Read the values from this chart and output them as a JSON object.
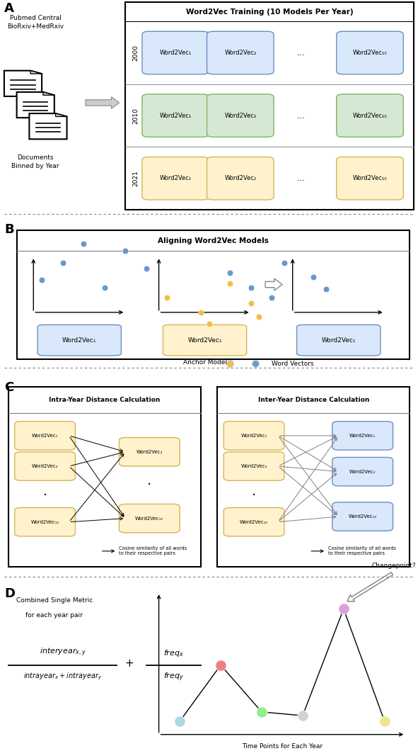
{
  "fig_width": 5.91,
  "fig_height": 10.6,
  "bg_color": "#ffffff",
  "panel_A": {
    "label": "A",
    "title": "Word2Vec Training (10 Models Per Year)",
    "years": [
      "2000",
      "2010",
      "2021"
    ],
    "row_colors": [
      "#dae8fc",
      "#d5e8d4",
      "#fff2cc"
    ],
    "row_edge_colors": [
      "#6c8ebf",
      "#82b366",
      "#d6b656"
    ],
    "src_label1": "Pubmed Central",
    "src_label2": "BioRxiv+MedRxiv",
    "bin_label1": "Documents",
    "bin_label2": "Binned by Year"
  },
  "panel_B": {
    "label": "B",
    "title": "Aligning Word2Vec Models",
    "box_labels": [
      "Word2Vec₁",
      "Word2Vec₁",
      "Word2Vec₁"
    ],
    "box_colors": [
      "#dae8fc",
      "#fff2cc",
      "#dae8fc"
    ],
    "box_edge_colors": [
      "#6c8ebf",
      "#d6b656",
      "#6c8ebf"
    ],
    "anchor_label": "Anchor Model",
    "legend_label": "Word Vectors",
    "yellow_dot": "#f0c040",
    "blue_dot": "#6699cc"
  },
  "panel_C": {
    "label": "C",
    "left_title": "Intra-Year Distance Calculation",
    "right_title": "Inter-Year Distance Calculation",
    "cosine_label": "Cosine similarity of all words\nto their respective pairs",
    "yellow": "#fff2cc",
    "yellow_edge": "#d6b656",
    "blue": "#dae8fc",
    "blue_edge": "#6c8ebf"
  },
  "panel_D": {
    "label": "D",
    "formula_line1": "Combined Single Metric",
    "formula_line2": "for each year pair",
    "xlabel": "Time Points for Each Year",
    "changepoint_label": "Changepoint?",
    "dot_colors": [
      "#add8e6",
      "#f08080",
      "#90ee90",
      "#d3d3d3",
      "#dda0dd",
      "#f0e68c"
    ],
    "line_points_y": [
      0.25,
      0.55,
      0.3,
      0.28,
      0.85,
      0.25
    ]
  }
}
